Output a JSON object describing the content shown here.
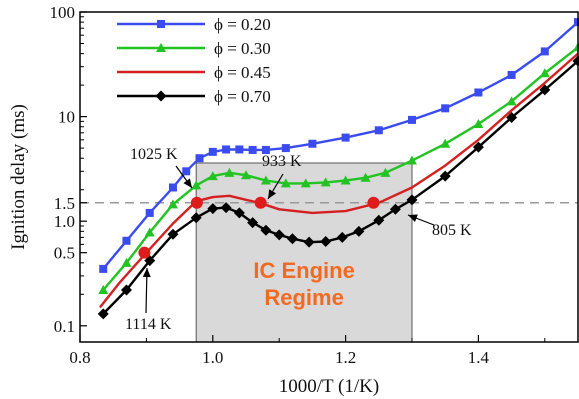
{
  "chart_data": {
    "type": "line",
    "xlabel": "1000/T (1/K)",
    "ylabel": "Ignition delay (ms)",
    "xlim": [
      0.8,
      1.55
    ],
    "ylim": [
      0.07,
      100
    ],
    "yscale": "log",
    "x_ticks": [
      {
        "value": 0.8,
        "label": "0.8"
      },
      {
        "value": 1.0,
        "label": "1.0"
      },
      {
        "value": 1.2,
        "label": "1.2"
      },
      {
        "value": 1.4,
        "label": "1.4"
      }
    ],
    "y_ticks": [
      {
        "value": 0.1,
        "label": "0.1"
      },
      {
        "value": 0.5,
        "label": "0.5"
      },
      {
        "value": 1.0,
        "label": "1.0"
      },
      {
        "value": 1.5,
        "label": "1.5"
      },
      {
        "value": 10,
        "label": "10"
      },
      {
        "value": 100,
        "label": "100"
      }
    ],
    "reference_line": {
      "y": 1.5,
      "style": "dashed",
      "color": "#999999"
    },
    "regime_box": {
      "x": [
        0.975,
        1.3
      ],
      "label_line1": "IC Engine",
      "label_line2": "Regime",
      "fill": "#d9d9d9",
      "label_color": "#f26a21"
    },
    "legend_position": "top-left",
    "series": [
      {
        "name": "ϕ = 0.20",
        "color": "#3a4cf0",
        "marker": "square",
        "x": [
          0.835,
          0.87,
          0.905,
          0.94,
          0.96,
          0.98,
          1.0,
          1.02,
          1.04,
          1.06,
          1.08,
          1.11,
          1.15,
          1.2,
          1.25,
          1.3,
          1.35,
          1.4,
          1.45,
          1.5,
          1.55
        ],
        "y": [
          0.35,
          0.65,
          1.2,
          2.1,
          3.0,
          4.0,
          4.6,
          4.85,
          4.85,
          4.8,
          4.8,
          5.0,
          5.5,
          6.3,
          7.4,
          9.3,
          12,
          17,
          25,
          42,
          80
        ]
      },
      {
        "name": "ϕ = 0.30",
        "color": "#22c322",
        "marker": "triangle",
        "x": [
          0.835,
          0.87,
          0.905,
          0.94,
          0.975,
          1.0,
          1.025,
          1.05,
          1.08,
          1.11,
          1.14,
          1.17,
          1.2,
          1.23,
          1.26,
          1.3,
          1.35,
          1.4,
          1.45,
          1.5,
          1.55
        ],
        "y": [
          0.22,
          0.4,
          0.78,
          1.45,
          2.2,
          2.7,
          2.9,
          2.75,
          2.45,
          2.3,
          2.3,
          2.35,
          2.45,
          2.6,
          2.9,
          3.8,
          5.5,
          8.5,
          14,
          26,
          46
        ]
      },
      {
        "name": "ϕ = 0.45",
        "color": "#d42020",
        "marker": "none",
        "x": [
          0.83,
          0.86,
          0.9,
          0.94,
          0.975,
          1.0,
          1.025,
          1.05,
          1.07,
          1.1,
          1.15,
          1.2,
          1.25,
          1.3,
          1.35,
          1.4,
          1.45,
          1.5,
          1.55
        ],
        "y": [
          0.15,
          0.26,
          0.5,
          0.95,
          1.55,
          1.7,
          1.75,
          1.6,
          1.5,
          1.3,
          1.2,
          1.25,
          1.5,
          2.1,
          3.4,
          6.0,
          11.5,
          21,
          40
        ]
      },
      {
        "name": "ϕ = 0.70",
        "color": "#000000",
        "marker": "diamond",
        "x": [
          0.835,
          0.87,
          0.905,
          0.94,
          0.975,
          1.0,
          1.02,
          1.04,
          1.06,
          1.08,
          1.1,
          1.12,
          1.145,
          1.17,
          1.195,
          1.22,
          1.25,
          1.275,
          1.3,
          1.35,
          1.4,
          1.45,
          1.5,
          1.55
        ],
        "y": [
          0.13,
          0.22,
          0.42,
          0.75,
          1.08,
          1.32,
          1.35,
          1.2,
          0.97,
          0.82,
          0.74,
          0.68,
          0.63,
          0.64,
          0.7,
          0.8,
          1.02,
          1.3,
          1.6,
          2.7,
          5.1,
          9.8,
          18,
          34
        ]
      }
    ],
    "highlight_points": [
      {
        "x": 0.897,
        "y": 0.5,
        "label": "1114 K"
      },
      {
        "x": 0.976,
        "y": 1.5,
        "label": "1025 K"
      },
      {
        "x": 1.072,
        "y": 1.5,
        "label": "933 K"
      },
      {
        "x": 1.242,
        "y": 1.5,
        "label": "805 K"
      }
    ],
    "highlight_color": "#e01b1b"
  }
}
